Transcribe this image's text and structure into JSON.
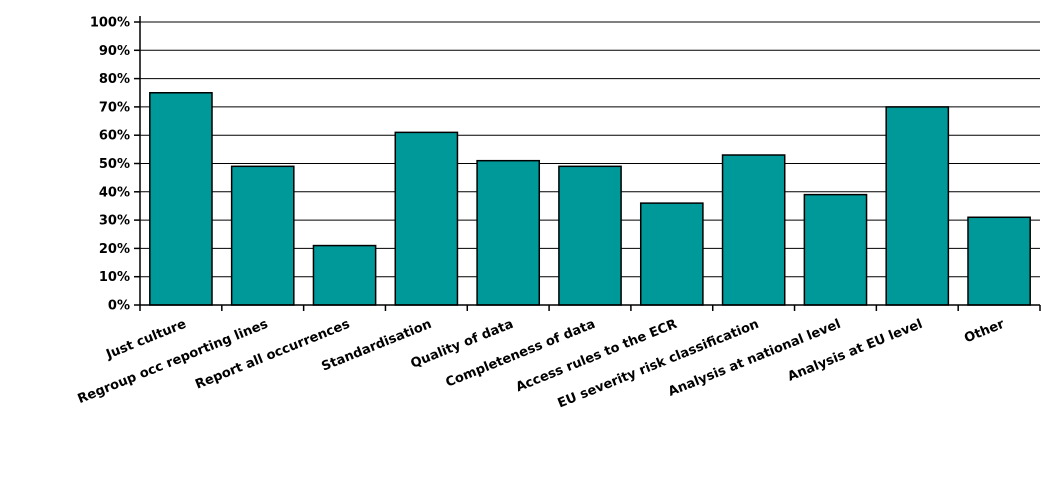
{
  "chart_data": {
    "type": "bar",
    "title": "",
    "xlabel": "",
    "ylabel": "",
    "ylim": [
      0,
      100
    ],
    "yticks": [
      "0%",
      "10%",
      "20%",
      "30%",
      "40%",
      "50%",
      "60%",
      "70%",
      "80%",
      "90%",
      "100%"
    ],
    "grid": true,
    "bar_color": "#009999",
    "categories": [
      "Just culture",
      "Regroup occ reporting lines",
      "Report all occurrences",
      "Standardisation",
      "Quality of data",
      "Completeness of data",
      "Access rules to the ECR",
      "EU severity risk classification",
      "Analysis at national level",
      "Analysis at EU level",
      "Other"
    ],
    "values": [
      75,
      49,
      21,
      61,
      51,
      49,
      36,
      53,
      39,
      70,
      31
    ]
  }
}
